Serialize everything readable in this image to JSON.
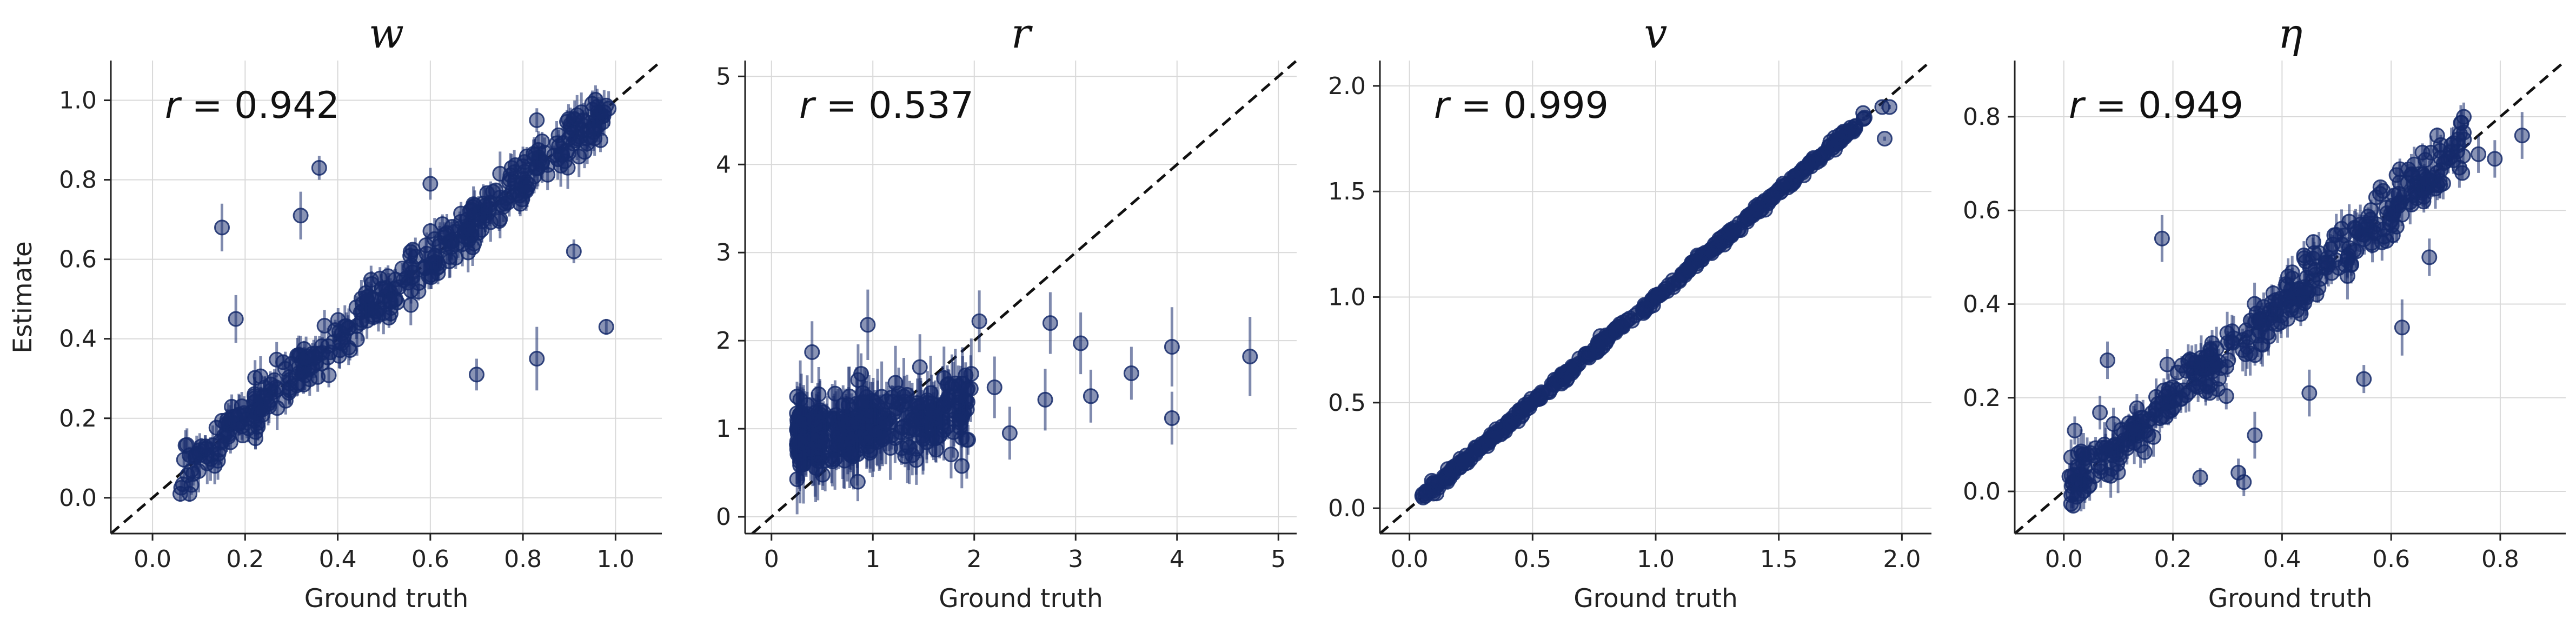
{
  "figure": {
    "y_label": "Estimate",
    "r_symbol": "r",
    "colors": {
      "points": "#152a6b",
      "identity_line": "#111111",
      "grid": "#d9d9d9"
    }
  },
  "chart_data": [
    {
      "type": "scatter",
      "title": "w",
      "xlabel": "Ground truth",
      "ylabel": "Estimate",
      "xlim": [
        -0.09,
        1.1
      ],
      "ylim": [
        -0.09,
        1.1
      ],
      "xticks": [
        "0.0",
        "0.2",
        "0.4",
        "0.6",
        "0.8",
        "1.0"
      ],
      "yticks": [
        "0.0",
        "0.2",
        "0.4",
        "0.6",
        "0.8",
        "1.0"
      ],
      "grid": true,
      "identity_line": true,
      "correlation": "= 0.942",
      "outliers": [
        {
          "x": 0.15,
          "y": 0.68,
          "err": 0.06
        },
        {
          "x": 0.32,
          "y": 0.71,
          "err": 0.06
        },
        {
          "x": 0.36,
          "y": 0.83,
          "err": 0.03
        },
        {
          "x": 0.18,
          "y": 0.45,
          "err": 0.06
        },
        {
          "x": 0.7,
          "y": 0.31,
          "err": 0.04
        },
        {
          "x": 0.83,
          "y": 0.35,
          "err": 0.08
        },
        {
          "x": 0.91,
          "y": 0.62,
          "err": 0.03
        },
        {
          "x": 0.98,
          "y": 0.43,
          "err": 0.02
        },
        {
          "x": 0.83,
          "y": 0.95,
          "err": 0.03
        },
        {
          "x": 0.06,
          "y": 0.01,
          "err": 0.02
        },
        {
          "x": 0.08,
          "y": 0.01,
          "err": 0.02
        },
        {
          "x": 0.6,
          "y": 0.79,
          "err": 0.04
        }
      ],
      "cluster": {
        "xmin": 0.06,
        "xmax": 0.99,
        "slope": 1.0,
        "intercept": 0.0,
        "spread": 0.03,
        "n": 420,
        "err": 0.035
      }
    },
    {
      "type": "scatter",
      "title": "r",
      "xlabel": "Ground truth",
      "ylabel": "",
      "xlim": [
        -0.26,
        5.18
      ],
      "ylim": [
        -0.19,
        5.18
      ],
      "xticks": [
        "0",
        "1",
        "2",
        "3",
        "4",
        "5"
      ],
      "yticks": [
        "0",
        "1",
        "2",
        "3",
        "4",
        "5"
      ],
      "grid": true,
      "identity_line": true,
      "correlation": "= 0.537",
      "outliers": [
        {
          "x": 0.4,
          "y": 1.87,
          "err": 0.35
        },
        {
          "x": 0.95,
          "y": 2.18,
          "err": 0.4
        },
        {
          "x": 2.05,
          "y": 2.22,
          "err": 0.35
        },
        {
          "x": 2.75,
          "y": 2.2,
          "err": 0.35
        },
        {
          "x": 3.05,
          "y": 1.97,
          "err": 0.35
        },
        {
          "x": 3.95,
          "y": 1.93,
          "err": 0.45
        },
        {
          "x": 4.72,
          "y": 1.82,
          "err": 0.45
        },
        {
          "x": 3.55,
          "y": 1.63,
          "err": 0.3
        },
        {
          "x": 3.95,
          "y": 1.12,
          "err": 0.3
        },
        {
          "x": 3.15,
          "y": 1.37,
          "err": 0.3
        },
        {
          "x": 2.7,
          "y": 1.33,
          "err": 0.35
        },
        {
          "x": 2.2,
          "y": 1.47,
          "err": 0.35
        },
        {
          "x": 1.75,
          "y": 1.32,
          "err": 0.35
        },
        {
          "x": 2.35,
          "y": 0.95,
          "err": 0.3
        }
      ],
      "cluster": {
        "xmin": 0.25,
        "xmax": 2.0,
        "slope": 0.18,
        "intercept": 0.85,
        "spread": 0.22,
        "n": 380,
        "err": 0.28
      }
    },
    {
      "type": "scatter",
      "title": "v",
      "xlabel": "Ground truth",
      "ylabel": "",
      "xlim": [
        -0.12,
        2.12
      ],
      "ylim": [
        -0.12,
        2.12
      ],
      "xticks": [
        "0.0",
        "0.5",
        "1.0",
        "1.5",
        "2.0"
      ],
      "yticks": [
        "0.0",
        "0.5",
        "1.0",
        "1.5",
        "2.0"
      ],
      "grid": true,
      "identity_line": true,
      "correlation": "= 0.999",
      "outliers": [
        {
          "x": 1.93,
          "y": 1.75,
          "err": 0.01
        },
        {
          "x": 1.95,
          "y": 1.9,
          "err": 0.01
        },
        {
          "x": 1.92,
          "y": 1.9,
          "err": 0.01
        }
      ],
      "cluster": {
        "xmin": 0.05,
        "xmax": 1.85,
        "slope": 1.0,
        "intercept": 0.0,
        "spread": 0.012,
        "n": 460,
        "err": 0.01
      }
    },
    {
      "type": "scatter",
      "title": "η",
      "xlabel": "Ground truth",
      "ylabel": "",
      "xlim": [
        -0.09,
        0.92
      ],
      "ylim": [
        -0.09,
        0.92
      ],
      "xticks": [
        "0.0",
        "0.2",
        "0.4",
        "0.6",
        "0.8"
      ],
      "yticks": [
        "0.0",
        "0.2",
        "0.4",
        "0.6",
        "0.8"
      ],
      "grid": true,
      "identity_line": true,
      "correlation": "= 0.949",
      "outliers": [
        {
          "x": 0.18,
          "y": 0.54,
          "err": 0.05
        },
        {
          "x": 0.25,
          "y": 0.03,
          "err": 0.02
        },
        {
          "x": 0.32,
          "y": 0.04,
          "err": 0.03
        },
        {
          "x": 0.33,
          "y": 0.02,
          "err": 0.03
        },
        {
          "x": 0.35,
          "y": 0.12,
          "err": 0.05
        },
        {
          "x": 0.55,
          "y": 0.24,
          "err": 0.03
        },
        {
          "x": 0.45,
          "y": 0.21,
          "err": 0.05
        },
        {
          "x": 0.62,
          "y": 0.35,
          "err": 0.06
        },
        {
          "x": 0.67,
          "y": 0.5,
          "err": 0.04
        },
        {
          "x": 0.84,
          "y": 0.76,
          "err": 0.05
        },
        {
          "x": 0.79,
          "y": 0.71,
          "err": 0.04
        },
        {
          "x": 0.76,
          "y": 0.72,
          "err": 0.04
        },
        {
          "x": 0.02,
          "y": 0.13,
          "err": 0.03
        },
        {
          "x": 0.08,
          "y": 0.28,
          "err": 0.04
        },
        {
          "x": 0.52,
          "y": 0.46,
          "err": 0.05
        }
      ],
      "cluster": {
        "xmin": 0.01,
        "xmax": 0.74,
        "slope": 1.0,
        "intercept": 0.0,
        "spread": 0.03,
        "n": 420,
        "err": 0.03
      }
    }
  ]
}
